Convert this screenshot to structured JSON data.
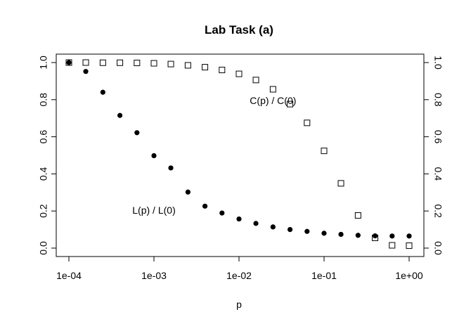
{
  "chart_data": {
    "type": "scatter",
    "title": "Lab Task (a)",
    "xlabel": "p",
    "ylabel": "",
    "x_scale": "log",
    "xlim": [
      0.0001,
      1
    ],
    "ylim": [
      0,
      1
    ],
    "x_ticks": [
      {
        "value": 0.0001,
        "label": "1e-04"
      },
      {
        "value": 0.001,
        "label": "1e-03"
      },
      {
        "value": 0.01,
        "label": "1e-02"
      },
      {
        "value": 0.1,
        "label": "1e-01"
      },
      {
        "value": 1,
        "label": "1e+00"
      }
    ],
    "y_ticks": [
      {
        "value": 0.0,
        "label": "0.0"
      },
      {
        "value": 0.2,
        "label": "0.2"
      },
      {
        "value": 0.4,
        "label": "0.4"
      },
      {
        "value": 0.6,
        "label": "0.6"
      },
      {
        "value": 0.8,
        "label": "0.8"
      },
      {
        "value": 1.0,
        "label": "1.0"
      }
    ],
    "right_axis_ticks": true,
    "grid": false,
    "x": [
      0.0001,
      0.000158,
      0.000251,
      0.000398,
      0.000631,
      0.001,
      0.00158,
      0.00251,
      0.00398,
      0.00631,
      0.01,
      0.0158,
      0.0251,
      0.0398,
      0.0631,
      0.1,
      0.158,
      0.251,
      0.398,
      0.631,
      1
    ],
    "series": [
      {
        "marker": "filled-circle",
        "values": [
          1.0,
          0.952,
          0.84,
          0.715,
          0.622,
          0.498,
          0.432,
          0.302,
          0.226,
          0.189,
          0.157,
          0.133,
          0.114,
          0.1,
          0.09,
          0.08,
          0.074,
          0.069,
          0.066,
          0.065,
          0.065
        ]
      },
      {
        "marker": "open-square",
        "values": [
          1.0,
          1.0,
          0.999,
          0.999,
          0.998,
          0.996,
          0.992,
          0.985,
          0.975,
          0.96,
          0.939,
          0.906,
          0.856,
          0.776,
          0.675,
          0.524,
          0.349,
          0.176,
          0.055,
          0.015,
          0.013
        ]
      }
    ],
    "annotations": [
      {
        "text": "C(p) / C(0)",
        "x": 0.0251,
        "y": 0.79
      },
      {
        "text": "L(p) / L(0)",
        "x": 0.001,
        "y": 0.2
      }
    ]
  }
}
